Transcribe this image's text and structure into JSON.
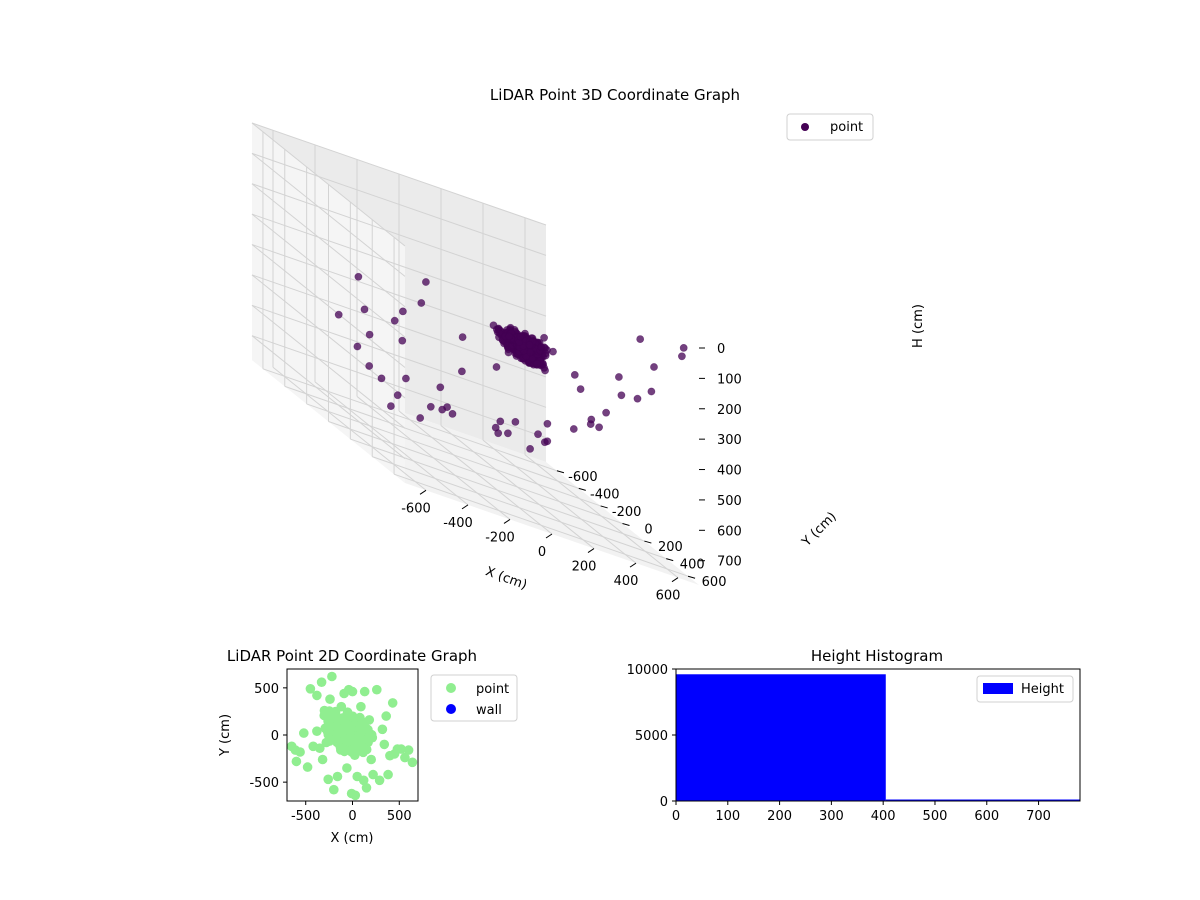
{
  "chart_data": [
    {
      "type": "scatter3d",
      "title": "LiDAR Point 3D Coordinate Graph",
      "xlabel": "X (cm)",
      "ylabel": "Y (cm)",
      "zlabel": "H (cm)",
      "xlim": [
        -700,
        700
      ],
      "ylim": [
        -700,
        700
      ],
      "zlim": [
        0,
        780
      ],
      "z_inverted": true,
      "xticks": [
        -600,
        -400,
        -200,
        0,
        200,
        400,
        600
      ],
      "yticks": [
        -600,
        -400,
        -200,
        0,
        200,
        400,
        600
      ],
      "zticks": [
        0,
        100,
        200,
        300,
        400,
        500,
        600,
        700
      ],
      "grid": true,
      "legend": {
        "placement": "top-right",
        "entries": [
          "point"
        ]
      },
      "colormap": "viridis",
      "colors": {
        "dense": "#440154",
        "mid": "#3b528b"
      },
      "series": [
        {
          "name": "point",
          "dense_clusters": [
            {
              "x": 150,
              "y": 150,
              "h": 300,
              "spread": [
                60,
                120,
                20
              ],
              "count": 420
            },
            {
              "x": 0,
              "y": 450,
              "h": 220,
              "spread": [
                110,
                70,
                20
              ],
              "count": 220
            }
          ],
          "points": [
            [
              -620,
              120,
              250
            ],
            [
              -610,
              -80,
              430
            ],
            [
              -560,
              60,
              360
            ],
            [
              -520,
              260,
              330
            ],
            [
              -500,
              -120,
              520
            ],
            [
              -450,
              200,
              300
            ],
            [
              -430,
              330,
              230
            ],
            [
              -400,
              -200,
              480
            ],
            [
              -380,
              60,
              420
            ],
            [
              -350,
              -300,
              600
            ],
            [
              -330,
              180,
              180
            ],
            [
              -300,
              -60,
              560
            ],
            [
              -280,
              420,
              280
            ],
            [
              -250,
              -380,
              640
            ],
            [
              -230,
              120,
              520
            ],
            [
              -200,
              260,
              420
            ],
            [
              -180,
              -160,
              690
            ],
            [
              -150,
              480,
              330
            ],
            [
              -120,
              20,
              610
            ],
            [
              -100,
              -520,
              700
            ],
            [
              -60,
              300,
              560
            ],
            [
              -30,
              560,
              230
            ],
            [
              0,
              -260,
              640
            ],
            [
              30,
              150,
              600
            ],
            [
              60,
              -420,
              680
            ],
            [
              100,
              380,
              520
            ],
            [
              140,
              640,
              240
            ],
            [
              170,
              -100,
              600
            ],
            [
              200,
              250,
              560
            ],
            [
              230,
              520,
              300
            ],
            [
              260,
              0,
              640
            ],
            [
              300,
              -280,
              660
            ],
            [
              330,
              420,
              420
            ],
            [
              360,
              620,
              200
            ],
            [
              390,
              150,
              500
            ],
            [
              420,
              -150,
              620
            ],
            [
              450,
              330,
              380
            ],
            [
              480,
              560,
              260
            ],
            [
              510,
              80,
              460
            ],
            [
              540,
              -380,
              600
            ],
            [
              570,
              240,
              320
            ],
            [
              600,
              480,
              150
            ],
            [
              620,
              -60,
              500
            ],
            [
              640,
              380,
              250
            ],
            [
              660,
              620,
              60
            ],
            [
              680,
              200,
              120
            ],
            [
              700,
              560,
              40
            ],
            [
              450,
              -500,
              650
            ],
            [
              -80,
              -620,
              760
            ],
            [
              120,
              -640,
              720
            ]
          ]
        }
      ]
    },
    {
      "type": "scatter",
      "title": "LiDAR Point 2D Coordinate Graph",
      "xlabel": "X (cm)",
      "ylabel": "Y (cm)",
      "xlim": [
        -700,
        700
      ],
      "ylim": [
        -700,
        700
      ],
      "xticks": [
        -500,
        0,
        500
      ],
      "yticks": [
        -500,
        0,
        500
      ],
      "legend": {
        "placement": "outside-right",
        "entries": [
          "point",
          "wall"
        ]
      },
      "colors": {
        "point": "#90ee90",
        "wall": "#0000ff"
      },
      "series": [
        {
          "name": "point",
          "clusters": [
            {
              "x": 0,
              "y": 0,
              "spread": [
                150,
                170
              ],
              "count": 400
            },
            {
              "x": -200,
              "y": 100,
              "spread": [
                100,
                150
              ],
              "count": 60
            }
          ],
          "points": [
            [
              -650,
              -120
            ],
            [
              -610,
              -160
            ],
            [
              -560,
              -180
            ],
            [
              -520,
              20
            ],
            [
              -480,
              -340
            ],
            [
              -450,
              490
            ],
            [
              -420,
              -120
            ],
            [
              -380,
              420
            ],
            [
              -330,
              560
            ],
            [
              -320,
              -260
            ],
            [
              -300,
              260
            ],
            [
              -280,
              -80
            ],
            [
              -260,
              -470
            ],
            [
              -240,
              380
            ],
            [
              -220,
              620
            ],
            [
              -200,
              -580
            ],
            [
              -180,
              220
            ],
            [
              -160,
              -440
            ],
            [
              -120,
              300
            ],
            [
              -90,
              440
            ],
            [
              -60,
              -350
            ],
            [
              -40,
              480
            ],
            [
              0,
              460
            ],
            [
              30,
              -640
            ],
            [
              50,
              -440
            ],
            [
              90,
              300
            ],
            [
              130,
              460
            ],
            [
              150,
              -560
            ],
            [
              180,
              160
            ],
            [
              200,
              -260
            ],
            [
              220,
              -420
            ],
            [
              260,
              480
            ],
            [
              290,
              -480
            ],
            [
              320,
              60
            ],
            [
              340,
              -100
            ],
            [
              360,
              200
            ],
            [
              380,
              -420
            ],
            [
              400,
              -220
            ],
            [
              430,
              340
            ],
            [
              450,
              -200
            ],
            [
              480,
              -150
            ],
            [
              520,
              -150
            ],
            [
              560,
              -240
            ],
            [
              600,
              -160
            ],
            [
              640,
              -290
            ],
            [
              -380,
              40
            ],
            [
              -350,
              -140
            ],
            [
              120,
              -480
            ],
            [
              -10,
              -620
            ],
            [
              -600,
              -280
            ]
          ]
        },
        {
          "name": "wall",
          "points": []
        }
      ]
    },
    {
      "type": "histogram",
      "title": "Height Histogram",
      "xlim": [
        0,
        780
      ],
      "ylim": [
        0,
        10000
      ],
      "xticks": [
        0,
        100,
        200,
        300,
        400,
        500,
        600,
        700
      ],
      "yticks": [
        0,
        5000,
        10000
      ],
      "legend": {
        "placement": "top-right",
        "entries": [
          "Height"
        ]
      },
      "colors": {
        "bar": "#0000ff"
      },
      "series": [
        {
          "name": "Height",
          "bins": [
            {
              "x0": 0,
              "x1": 405,
              "count": 9600
            },
            {
              "x0": 405,
              "x1": 780,
              "count": 40
            }
          ]
        }
      ]
    }
  ]
}
